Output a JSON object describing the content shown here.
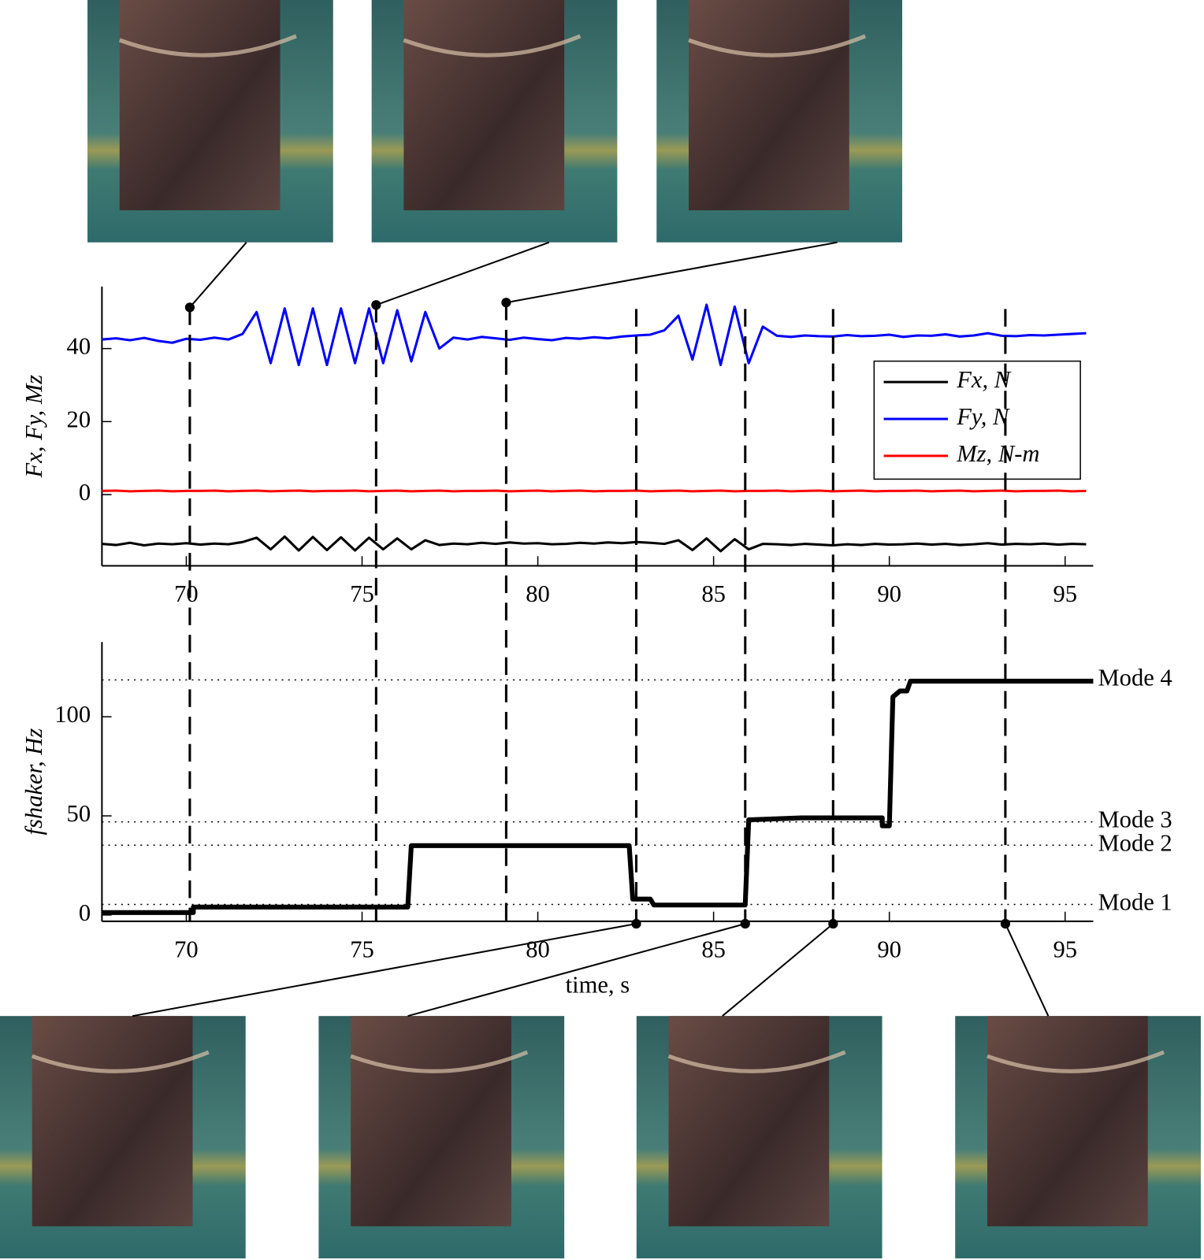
{
  "chart_data": [
    {
      "type": "line",
      "ylabel": "Fx, Fy, Mz",
      "x": [
        67.6,
        68,
        68.4,
        68.8,
        69.2,
        69.6,
        70,
        70.4,
        70.8,
        71.2,
        71.6,
        72,
        72.4,
        72.8,
        73.2,
        73.6,
        74,
        74.4,
        74.8,
        75.2,
        75.6,
        76,
        76.4,
        76.8,
        77.2,
        77.6,
        78,
        78.4,
        78.8,
        79.2,
        79.6,
        80,
        80.4,
        80.8,
        81.2,
        81.6,
        82,
        82.4,
        82.8,
        83.2,
        83.6,
        84,
        84.4,
        84.8,
        85.2,
        85.6,
        86,
        86.4,
        86.8,
        87.2,
        87.6,
        88,
        88.4,
        88.8,
        89.2,
        89.6,
        90,
        90.4,
        90.8,
        91.2,
        91.6,
        92,
        92.4,
        92.8,
        93.2,
        93.6,
        94,
        94.4,
        94.8,
        95.2,
        95.6
      ],
      "series": [
        {
          "name": "Fx, N",
          "color": "#000000",
          "values": [
            -13.5,
            -13.8,
            -13.2,
            -13.9,
            -13.4,
            -13.6,
            -13.3,
            -13.7,
            -13.4,
            -13.6,
            -13,
            -11.8,
            -15,
            -11.5,
            -15.3,
            -11.6,
            -15.2,
            -11.7,
            -15.3,
            -11.8,
            -15,
            -12,
            -15,
            -12.5,
            -13.8,
            -13.4,
            -13.6,
            -13.2,
            -13.5,
            -13.1,
            -13.4,
            -13.3,
            -13.6,
            -13.5,
            -13.2,
            -13.4,
            -13.1,
            -13.3,
            -13,
            -13.2,
            -13.5,
            -12.5,
            -15.2,
            -12,
            -15.5,
            -12.2,
            -15,
            -13.5,
            -13.6,
            -13.8,
            -13.5,
            -13.7,
            -13.9,
            -13.6,
            -13.8,
            -13.5,
            -13.7,
            -13.6,
            -13.4,
            -13.7,
            -13.5,
            -13.8,
            -13.6,
            -13.3,
            -13.7,
            -13.5,
            -13.6,
            -13.4,
            -13.7,
            -13.5,
            -13.6
          ]
        },
        {
          "name": "Fy, N",
          "color": "#0000ff",
          "values": [
            42.5,
            42.8,
            42.3,
            42.9,
            42.1,
            41.6,
            42.7,
            42.4,
            43,
            42.5,
            44,
            50,
            36,
            51,
            35.5,
            51,
            35.5,
            51,
            36,
            51,
            36,
            50.5,
            36.5,
            50,
            40,
            43,
            42.5,
            43.2,
            42.8,
            42.4,
            43,
            42.6,
            42.3,
            42.9,
            42.7,
            43.1,
            42.8,
            43.3,
            43.6,
            43.8,
            45,
            49,
            37,
            52,
            35.5,
            51.5,
            36,
            46,
            43.5,
            43.2,
            43.6,
            43.4,
            43.3,
            43.7,
            43.4,
            43.5,
            43.8,
            43.2,
            43.6,
            43.5,
            43.9,
            43.3,
            43.6,
            44.2,
            43.5,
            43.4,
            43.7,
            43.6,
            43.8,
            44,
            44.2
          ]
        },
        {
          "name": "Mz, N-m",
          "color": "#ff0000",
          "values": [
            1,
            1.1,
            0.9,
            1,
            1.1,
            0.9,
            1,
            1,
            1.1,
            0.9,
            1,
            1.1,
            0.9,
            1,
            1.1,
            0.9,
            1,
            1,
            1.1,
            0.9,
            1,
            1.1,
            0.9,
            1,
            1.1,
            0.9,
            1,
            1,
            1.1,
            0.9,
            1,
            1.1,
            0.9,
            1,
            1.1,
            0.9,
            1,
            1,
            1.1,
            0.9,
            1,
            1.1,
            0.9,
            1,
            1.1,
            0.9,
            1,
            1,
            1.1,
            0.9,
            1,
            1.1,
            0.9,
            1,
            1.1,
            0.9,
            1,
            1,
            1.1,
            0.9,
            1,
            1.1,
            0.9,
            1,
            1.1,
            0.9,
            1,
            1,
            1.1,
            0.9,
            1
          ]
        }
      ],
      "xlim": [
        67.6,
        95.8
      ],
      "ylim": [
        -19.5,
        57
      ],
      "xticks": [
        70,
        75,
        80,
        85,
        90,
        95
      ],
      "yticks": [
        0,
        20,
        40
      ],
      "legend": "upper right",
      "markers": [
        70.1,
        75.4,
        79.1,
        82.8,
        85.9,
        88.4,
        93.3
      ]
    },
    {
      "type": "line",
      "xlabel": "time, s",
      "ylabel": "fshaker, Hz",
      "x": [
        67.6,
        70.2,
        70.2,
        76.3,
        76.4,
        82.6,
        82.7,
        83.2,
        83.3,
        85.9,
        86,
        87.5,
        89.8,
        89.8,
        90,
        90.1,
        90.3,
        90.5,
        90.6,
        95.8
      ],
      "values": [
        1.2,
        1.2,
        4,
        4,
        35,
        35,
        8,
        8,
        5,
        5,
        48,
        49,
        49,
        45,
        45,
        110,
        113,
        113,
        118,
        118
      ],
      "color": "#000000",
      "xlim": [
        67.6,
        95.8
      ],
      "ylim": [
        -3.2,
        137.7
      ],
      "xticks": [
        70,
        75,
        80,
        85,
        90,
        95
      ],
      "yticks": [
        0,
        50,
        100
      ],
      "reference_lines": [
        {
          "label": "Mode 4",
          "value": 118.6
        },
        {
          "label": "Mode 3",
          "value": 47
        },
        {
          "label": "Mode 2",
          "value": 35.2
        },
        {
          "label": "Mode 1",
          "value": 5.3
        }
      ]
    }
  ]
}
